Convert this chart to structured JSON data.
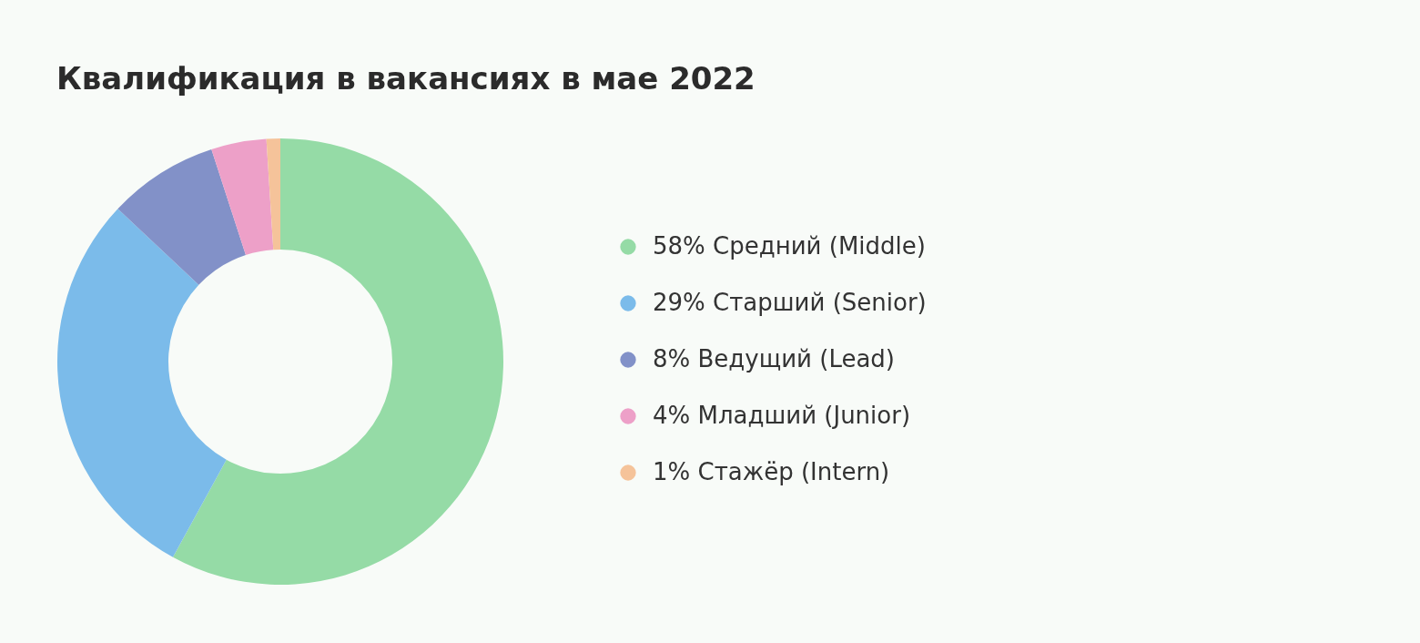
{
  "chart_data": {
    "type": "donut",
    "title": "Квалификация в вакансиях в мае 2022",
    "categories": [
      "Средний (Middle)",
      "Старший (Senior)",
      "Ведущий (Lead)",
      "Младший (Junior)",
      "Стажёр (Intern)"
    ],
    "values": [
      58,
      29,
      8,
      4,
      1
    ],
    "value_labels": [
      "58%",
      "29%",
      "8%",
      "4%",
      "1%"
    ],
    "colors": [
      "#95dba6",
      "#7bbbea",
      "#8291c8",
      "#eda0c8",
      "#f5c39a"
    ],
    "legend": "right"
  }
}
